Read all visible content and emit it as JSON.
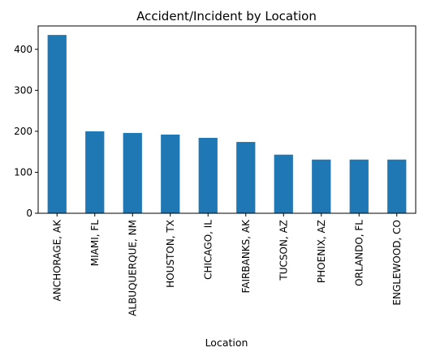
{
  "chart_data": {
    "type": "bar",
    "title": "Accident/Incident by Location",
    "xlabel": "Location",
    "ylabel": "",
    "categories": [
      "ANCHORAGE, AK",
      "MIAMI, FL",
      "ALBUQUERQUE, NM",
      "HOUSTON, TX",
      "CHICAGO, IL",
      "FAIRBANKS, AK",
      "TUCSON, AZ",
      "PHOENIX, AZ",
      "ORLANDO, FL",
      "ENGLEWOOD, CO"
    ],
    "values": [
      435,
      200,
      196,
      192,
      184,
      174,
      143,
      131,
      131,
      131
    ],
    "ylim": [
      0,
      457
    ],
    "yticks": [
      0,
      100,
      200,
      300,
      400
    ],
    "grid": false,
    "legend": "none",
    "bar_color": "#1f77b4"
  }
}
